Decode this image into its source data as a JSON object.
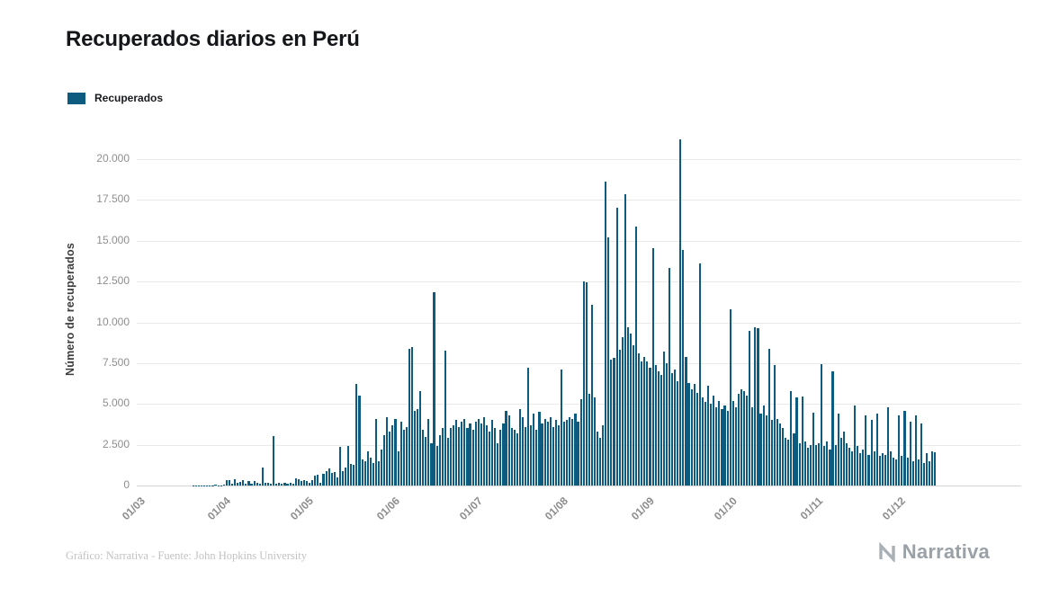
{
  "title": "Recuperados diarios en Perú",
  "legend": {
    "label": "Recuperados"
  },
  "footer": {
    "credit": "Gráfico: Narrativa - Fuente: John Hopkins University",
    "brand": "Narrativa"
  },
  "chart_data": {
    "type": "bar",
    "title": "Recuperados diarios en Perú",
    "xlabel": "",
    "ylabel": "Número de recuperados",
    "ylim": [
      0,
      21600
    ],
    "grid": "horizontal",
    "legend_position": "top-left",
    "bar_color": "#0d5c80",
    "y_ticks": [
      0,
      2500,
      5000,
      7500,
      10000,
      12500,
      15000,
      17500,
      20000
    ],
    "y_tick_labels": [
      "0",
      "2.500",
      "5.000",
      "7.500",
      "10.000",
      "12.500",
      "15.000",
      "17.500",
      "20.000"
    ],
    "x_tick_labels": [
      "01/03",
      "01/04",
      "01/05",
      "01/06",
      "01/07",
      "01/08",
      "01/09",
      "01/10",
      "01/11",
      "01/12"
    ],
    "x_tick_day_indices": [
      0,
      31,
      61,
      92,
      122,
      153,
      184,
      214,
      245,
      275
    ],
    "x_start_label": "01/03",
    "series": [
      {
        "name": "Recuperados",
        "values": [
          0,
          0,
          0,
          0,
          0,
          0,
          0,
          0,
          0,
          0,
          0,
          0,
          0,
          0,
          0,
          0,
          1,
          2,
          3,
          4,
          6,
          8,
          10,
          12,
          16,
          20,
          24,
          28,
          32,
          20,
          18,
          60,
          350,
          310,
          120,
          380,
          150,
          210,
          330,
          90,
          270,
          130,
          300,
          140,
          110,
          1080,
          150,
          180,
          130,
          3020,
          120,
          160,
          100,
          140,
          130,
          170,
          110,
          420,
          380,
          300,
          350,
          280,
          160,
          320,
          600,
          650,
          180,
          700,
          900,
          1050,
          750,
          820,
          500,
          2350,
          900,
          1100,
          2400,
          1300,
          1250,
          6200,
          5500,
          1600,
          1500,
          2100,
          1700,
          1400,
          4100,
          1500,
          2200,
          3100,
          4200,
          3300,
          3700,
          4100,
          2100,
          3900,
          3400,
          3600,
          8400,
          8500,
          4600,
          4700,
          5800,
          3400,
          2950,
          4100,
          2600,
          11850,
          2400,
          3100,
          3500,
          8250,
          2900,
          3500,
          3700,
          4000,
          3600,
          3900,
          4100,
          3500,
          3800,
          3400,
          3900,
          4100,
          3800,
          4200,
          3700,
          3300,
          4000,
          3500,
          2600,
          3400,
          3800,
          4600,
          4300,
          3500,
          3400,
          3200,
          4700,
          4200,
          3600,
          7200,
          3700,
          4400,
          3400,
          4500,
          3800,
          4100,
          3900,
          4200,
          3600,
          4000,
          3700,
          7100,
          3900,
          4000,
          4200,
          4100,
          4400,
          3900,
          5300,
          12500,
          12450,
          5600,
          11100,
          5400,
          3300,
          2900,
          3700,
          18650,
          15200,
          7700,
          7800,
          17000,
          8300,
          9100,
          17850,
          9700,
          9300,
          8600,
          15850,
          8100,
          7600,
          7900,
          7600,
          7200,
          14550,
          7400,
          7000,
          6800,
          8200,
          7500,
          13350,
          6900,
          7100,
          6400,
          21200,
          14450,
          7900,
          6300,
          5900,
          6200,
          5700,
          13600,
          5400,
          5100,
          6100,
          5000,
          5500,
          4800,
          5200,
          4700,
          4900,
          4600,
          10800,
          5200,
          4800,
          5600,
          5900,
          5800,
          5500,
          9500,
          4800,
          9700,
          9650,
          4400,
          4900,
          4300,
          8400,
          4000,
          7400,
          4100,
          3800,
          3500,
          2900,
          2800,
          5800,
          3200,
          5400,
          2600,
          5450,
          2700,
          2300,
          2500,
          4450,
          2500,
          2600,
          7450,
          2400,
          2700,
          2200,
          7000,
          2500,
          4400,
          2900,
          3300,
          2600,
          2300,
          2100,
          4900,
          2400,
          2000,
          2200,
          4300,
          1900,
          4050,
          2100,
          4400,
          1800,
          2000,
          1900,
          4800,
          2100,
          1700,
          1600,
          4300,
          1800,
          4600,
          1700,
          3900,
          1500,
          4300,
          1600,
          3800,
          1400,
          2000,
          1500,
          2100,
          2050
        ]
      }
    ]
  }
}
